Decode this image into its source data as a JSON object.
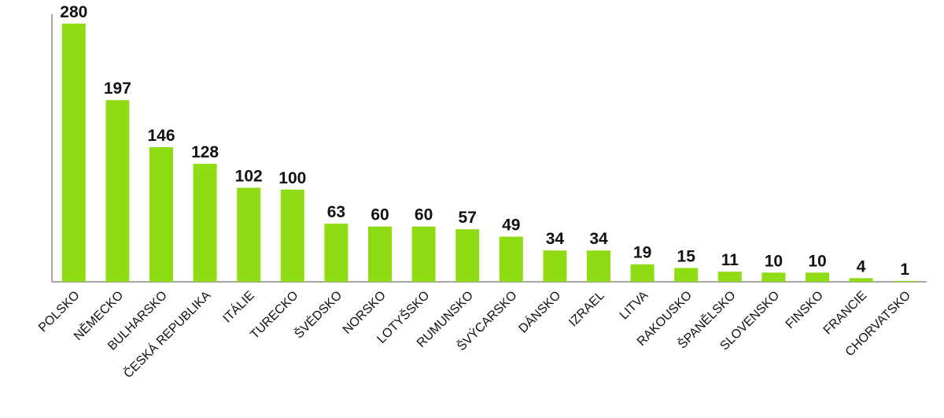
{
  "chart_data": {
    "type": "bar",
    "categories": [
      "POLSKO",
      "NĚMECKO",
      "BULHARSKO",
      "ČESKÁ REPUBLIKA",
      "ITÁLIE",
      "TURECKO",
      "ŠVÉDSKO",
      "NORSKO",
      "LOTYŠSKO",
      "RUMUNSKO",
      "ŠVÝCARSKO",
      "DÁNSKO",
      "IZRAEL",
      "LITVA",
      "RAKOUSKO",
      "ŠPANĚLSKO",
      "SLOVENSKO",
      "FINSKO",
      "FRANCIE",
      "CHORVATSKO"
    ],
    "values": [
      280,
      197,
      146,
      128,
      102,
      100,
      63,
      60,
      60,
      57,
      49,
      34,
      34,
      19,
      15,
      11,
      10,
      10,
      4,
      1
    ],
    "color": "#8fdc14",
    "ylim": [
      0,
      280
    ]
  }
}
